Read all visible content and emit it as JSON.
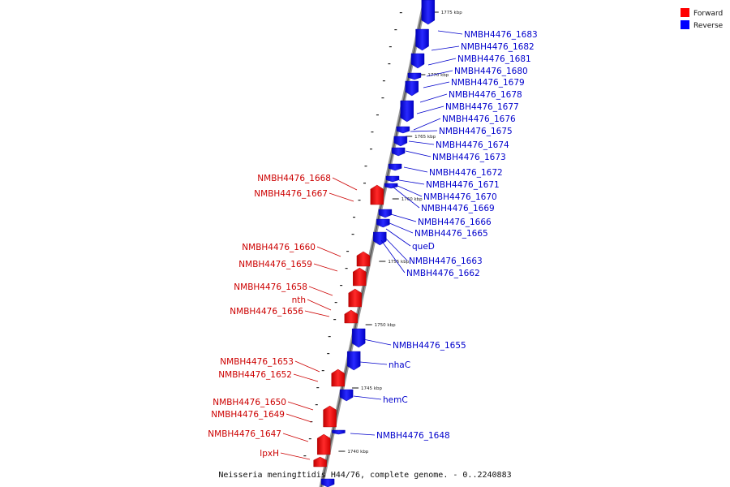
{
  "caption": "Neisseria meningitidis H44/76, complete genome. - 0..2240883",
  "legend": {
    "forward": "Forward",
    "reverse": "Reverse",
    "forward_color": "#ff0000",
    "reverse_color": "#0000ff"
  },
  "scale_ticks": [
    {
      "label": "1775 kbp",
      "kbp": 1775
    },
    {
      "label": "1770 kbp",
      "kbp": 1770
    },
    {
      "label": "1765 kbp",
      "kbp": 1765
    },
    {
      "label": "1760 kbp",
      "kbp": 1760
    },
    {
      "label": "1755 kbp",
      "kbp": 1755
    },
    {
      "label": "1750 kbp",
      "kbp": 1750
    },
    {
      "label": "1745 kbp",
      "kbp": 1745
    },
    {
      "label": "1740 kbp",
      "kbp": 1740
    }
  ],
  "reverse_labels": [
    "NMBH4476_1683",
    "NMBH4476_1682",
    "NMBH4476_1681",
    "NMBH4476_1680",
    "NMBH4476_1679",
    "NMBH4476_1678",
    "NMBH4476_1677",
    "NMBH4476_1676",
    "NMBH4476_1675",
    "NMBH4476_1674",
    "NMBH4476_1673",
    "NMBH4476_1672",
    "NMBH4476_1671",
    "NMBH4476_1670",
    "NMBH4476_1669",
    "NMBH4476_1666",
    "NMBH4476_1665",
    "queD",
    "NMBH4476_1663",
    "NMBH4476_1662",
    "NMBH4476_1655",
    "nhaC",
    "hemC",
    "NMBH4476_1648"
  ],
  "forward_labels": [
    "NMBH4476_1668",
    "NMBH4476_1667",
    "NMBH4476_1660",
    "NMBH4476_1659",
    "NMBH4476_1658",
    "nth",
    "NMBH4476_1656",
    "NMBH4476_1653",
    "NMBH4476_1652",
    "NMBH4476_1650",
    "NMBH4476_1649",
    "NMBH4476_1647",
    "lpxH"
  ]
}
